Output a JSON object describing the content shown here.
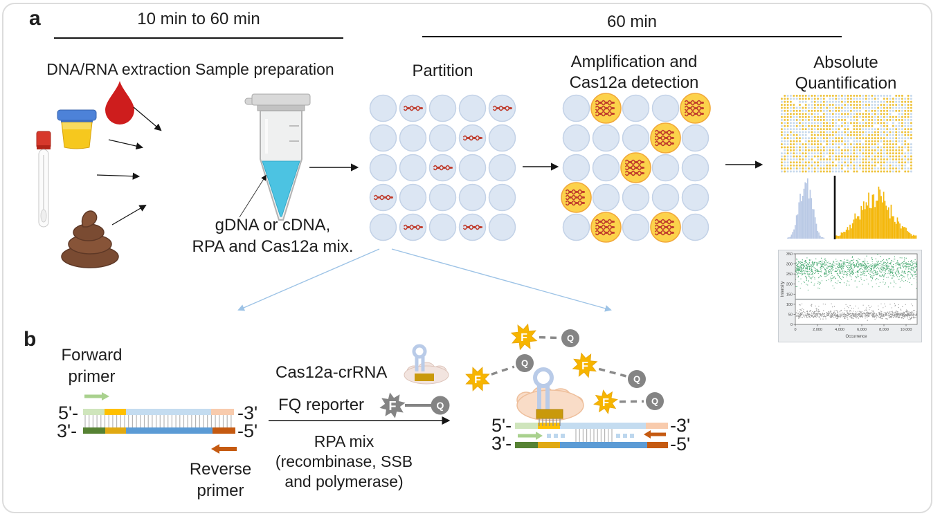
{
  "figure": {
    "panel_a_label": "a",
    "panel_b_label": "b"
  },
  "panel_a": {
    "timeline_left": "10 min to 60 min",
    "timeline_right": "60 min",
    "extraction_title": "DNA/RNA extraction Sample preparation",
    "sample_icons": [
      "blood-drop-icon",
      "urine-container-icon",
      "swab-tube-icon",
      "stool-icon"
    ],
    "tube_note": {
      "line1": "gDNA or cDNA,",
      "line2": "RPA and Cas12a mix."
    },
    "steps": {
      "partition": "Partition",
      "amplification_line1": "Amplification and",
      "amplification_line2": "Cas12a detection",
      "quantification_line1": "Absolute",
      "quantification_line2": "Quantification"
    }
  },
  "panel_b": {
    "forward_primer_line1": "Forward",
    "forward_primer_line2": "primer",
    "reverse_primer_line1": "Reverse",
    "reverse_primer_line2": "primer",
    "cas12a_label": "Cas12a-crRNA",
    "fq_label": "FQ reporter",
    "rpa_line1": "RPA mix",
    "rpa_line2": "(recombinase, SSB",
    "rpa_line3": "and polymerase)",
    "fluorophore_letter": "F",
    "quencher_letter": "Q",
    "duplex_left": {
      "top_left": "5'-",
      "top_right": "-3'",
      "bottom_left": "3'-",
      "bottom_right": "-5'"
    },
    "duplex_right": {
      "top_left": "5'-",
      "top_right": "-3'",
      "bottom_left": "3'-",
      "bottom_right": "-5'"
    }
  },
  "colors": {
    "partition_negative": "#dce6f3",
    "partition_border": "#c3d2e7",
    "positive_fill": "#fcd24b",
    "positive_border": "#f2a93b",
    "target_dna": "#bf3a2b",
    "tube_liquid": "#4cc3e2",
    "fluorophore": "#f7b500",
    "quencher": "#8a8a8a",
    "crRNA": "#b9cbe8",
    "cas12a_protein": "#f9dcc7",
    "crRNA_seed": "#c9990b",
    "forward_primer": "#a9d18e",
    "reverse_primer": "#c55a11",
    "strand_top": [
      "#cfe5bc",
      "#ffc000",
      "#c4dcf0",
      "#f8cbad"
    ],
    "strand_bottom": [
      "#568233",
      "#e0a912",
      "#5b9bd5",
      "#c55a11"
    ],
    "flow_arrow_blue": "#9dc3e6",
    "hist_negative": "#b9c9e5",
    "hist_positive": "#f4b70a",
    "scatter_positive": "#2f9e5f",
    "scatter_negative": "#7a7a7a"
  },
  "chart_data": [
    {
      "id": "partition-grid",
      "type": "heatmap",
      "title": "Partition",
      "rows": 5,
      "cols": 5,
      "positive_cells_row_col": [
        [
          0,
          1
        ],
        [
          0,
          4
        ],
        [
          1,
          3
        ],
        [
          2,
          2
        ],
        [
          3,
          0
        ],
        [
          4,
          1
        ],
        [
          4,
          3
        ]
      ],
      "note": "light-blue droplets; positives contain one red target-DNA squiggle"
    },
    {
      "id": "amplification-grid",
      "type": "heatmap",
      "title": "Amplification and Cas12a detection",
      "rows": 5,
      "cols": 5,
      "positive_cells_row_col": [
        [
          0,
          1
        ],
        [
          0,
          4
        ],
        [
          1,
          3
        ],
        [
          2,
          2
        ],
        [
          3,
          0
        ],
        [
          4,
          1
        ],
        [
          4,
          3
        ]
      ],
      "note": "same droplets; positives turn yellow (fluorescent) with amplified target squiggles"
    },
    {
      "id": "chip-image",
      "type": "heatmap",
      "rows": 26,
      "cols": 44,
      "positive_fraction": 0.55,
      "empty_fraction": 0.05,
      "positive_color": "#eec33e",
      "negative_color": "#c7d9ec"
    },
    {
      "id": "intensity-histogram",
      "type": "area",
      "series": [
        {
          "name": "negative partitions",
          "color": "#b9c9e5",
          "peak_center_rel": 0.18,
          "peak_sd_rel": 0.045,
          "peak_height_rel": 0.95
        },
        {
          "name": "positive partitions",
          "color": "#f4b70a",
          "peak_center_rel": 0.7,
          "peak_sd_rel": 0.125,
          "peak_height_rel": 0.65
        }
      ],
      "threshold_x_rel": 0.4,
      "legend_position": "none",
      "grid": false
    },
    {
      "id": "intensity-scatter",
      "type": "scatter",
      "xlabel": "Occurrence",
      "ylabel": "Intensity",
      "xlim": [
        0,
        11000
      ],
      "ylim": [
        0,
        350
      ],
      "xticks": [
        "0",
        "2,000",
        "4,000",
        "6,000",
        "8,000",
        "10,000"
      ],
      "xtick_values": [
        0,
        2000,
        4000,
        6000,
        8000,
        10000
      ],
      "yticks": [
        "0",
        "50",
        "100",
        "150",
        "200",
        "250",
        "300",
        "350"
      ],
      "ytick_values": [
        0,
        50,
        100,
        150,
        200,
        250,
        300,
        350
      ],
      "threshold_y": 125,
      "grid": false,
      "series": [
        {
          "name": "positive partitions",
          "color": "#2f9e5f",
          "n": 850,
          "y_mean": 285,
          "y_sd": 20,
          "tail_min": 160,
          "tail_n": 300
        },
        {
          "name": "negative partitions",
          "color": "#7a7a7a",
          "n": 720,
          "y_mean": 48,
          "y_sd": 9,
          "outlier_n": 70,
          "outlier_max": 105
        }
      ]
    }
  ]
}
